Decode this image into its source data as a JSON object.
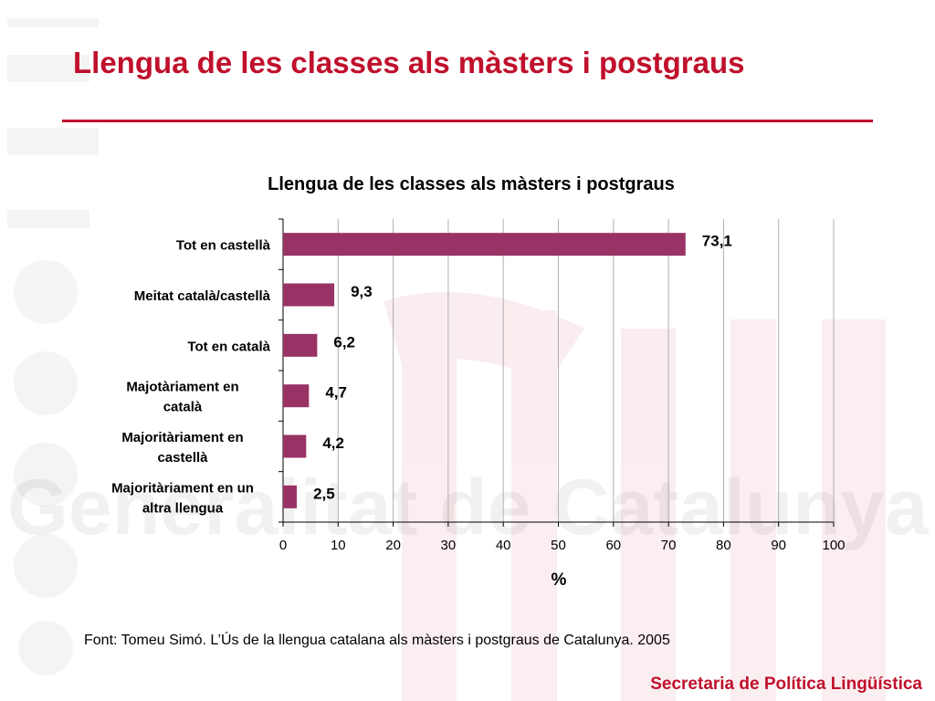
{
  "slide": {
    "title": "Llengua de les classes als màsters i postgraus",
    "source": "Font: Tomeu Simó. L’Ús de la llengua catalana als màsters i postgraus de Catalunya. 2005",
    "footer": "Secretaria de Política Lingüística",
    "accent_color": "#c0102c",
    "watermark_text": "Generalitat de Catalunya"
  },
  "chart_data": {
    "type": "bar",
    "orientation": "horizontal",
    "title": "Llengua de les classes als màsters i postgraus",
    "xlabel": "%",
    "ylabel": "",
    "categories": [
      [
        "Tot en castellà"
      ],
      [
        "Meitat català/castellà"
      ],
      [
        "Tot en català"
      ],
      [
        "Majotàriament en",
        "català"
      ],
      [
        "Majoritàriament en",
        "castellà"
      ],
      [
        "Majoritàriament en un",
        "altra llengua"
      ]
    ],
    "values": [
      73.1,
      9.3,
      6.2,
      4.7,
      4.2,
      2.5
    ],
    "value_labels": [
      "73,1",
      "9,3",
      "6,2",
      "4,7",
      "4,2",
      "2,5"
    ],
    "xlim": [
      0,
      100
    ],
    "xticks": [
      0,
      10,
      20,
      30,
      40,
      50,
      60,
      70,
      80,
      90,
      100
    ],
    "grid": true,
    "legend": "none",
    "bar_color": "#993366"
  }
}
